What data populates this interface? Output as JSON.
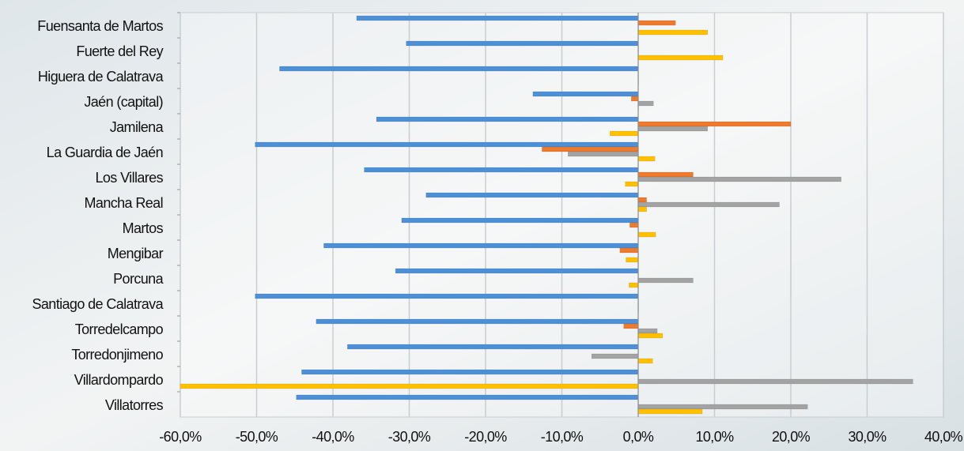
{
  "chart_data": {
    "type": "bar",
    "orientation": "horizontal",
    "categories": [
      "Fuensanta de Martos",
      "Fuerte del Rey",
      "Higuera de Calatrava",
      "Jaén (capital)",
      "Jamilena",
      "La Guardia de Jaén",
      "Los Villares",
      "Mancha Real",
      "Martos",
      "Mengibar",
      "Porcuna",
      "Santiago de Calatrava",
      "Torredelcampo",
      "Torredonjimeno",
      "Villardompardo",
      "Villatorres"
    ],
    "series": [
      {
        "color": "#4f8fd6",
        "values": [
          -36.9,
          -30.4,
          -47.0,
          -13.8,
          -34.3,
          -50.2,
          -35.9,
          -27.8,
          -31.0,
          -41.2,
          -31.8,
          -50.2,
          -42.2,
          -38.1,
          -44.1,
          -44.8
        ]
      },
      {
        "color": "#ee7a2e",
        "values": [
          4.9,
          0,
          0,
          -0.9,
          20.0,
          -12.6,
          7.2,
          1.1,
          -1.1,
          -2.4,
          0,
          0,
          -1.9,
          0,
          0,
          0
        ]
      },
      {
        "color": "#a3a3a3",
        "values": [
          0,
          0,
          0,
          2.0,
          9.1,
          -9.2,
          26.6,
          18.5,
          0,
          0,
          7.2,
          0,
          2.5,
          -6.1,
          36.0,
          22.2
        ]
      },
      {
        "color": "#ffc000",
        "values": [
          9.1,
          11.1,
          0,
          0,
          -3.7,
          2.2,
          -1.7,
          1.1,
          2.3,
          -1.6,
          -1.2,
          0,
          3.2,
          1.9,
          -60.0,
          8.4
        ]
      }
    ],
    "xlim": [
      -60,
      40
    ],
    "xticks": [
      {
        "value": -60,
        "label": "-60,0%"
      },
      {
        "value": -50,
        "label": "-50,0%"
      },
      {
        "value": -40,
        "label": "-40,0%"
      },
      {
        "value": -30,
        "label": "-30,0%"
      },
      {
        "value": -20,
        "label": "-20,0%"
      },
      {
        "value": -10,
        "label": "-10,0%"
      },
      {
        "value": 0,
        "label": "0,0%"
      },
      {
        "value": 10,
        "label": "10,0%"
      },
      {
        "value": 20,
        "label": "20,0%"
      },
      {
        "value": 30,
        "label": "30,0%"
      },
      {
        "value": 40,
        "label": "40,0%"
      }
    ],
    "grid": true
  }
}
